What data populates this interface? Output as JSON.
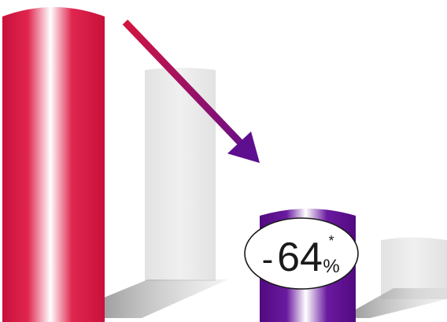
{
  "chart_data": {
    "type": "bar",
    "title": "",
    "xlabel": "",
    "ylabel": "",
    "series": [
      {
        "values": [
          100,
          36
        ],
        "colors": [
          "#d3143f",
          "#5d0f8f"
        ]
      }
    ],
    "annotation": {
      "sign": "-",
      "value": "64",
      "unit": "%",
      "footnote_mark": "*"
    },
    "arrow": {
      "from_color": "#d3143f",
      "to_color": "#5d0f8f"
    },
    "background_bars": {
      "color": "#e9e9ea",
      "count": 2
    }
  }
}
